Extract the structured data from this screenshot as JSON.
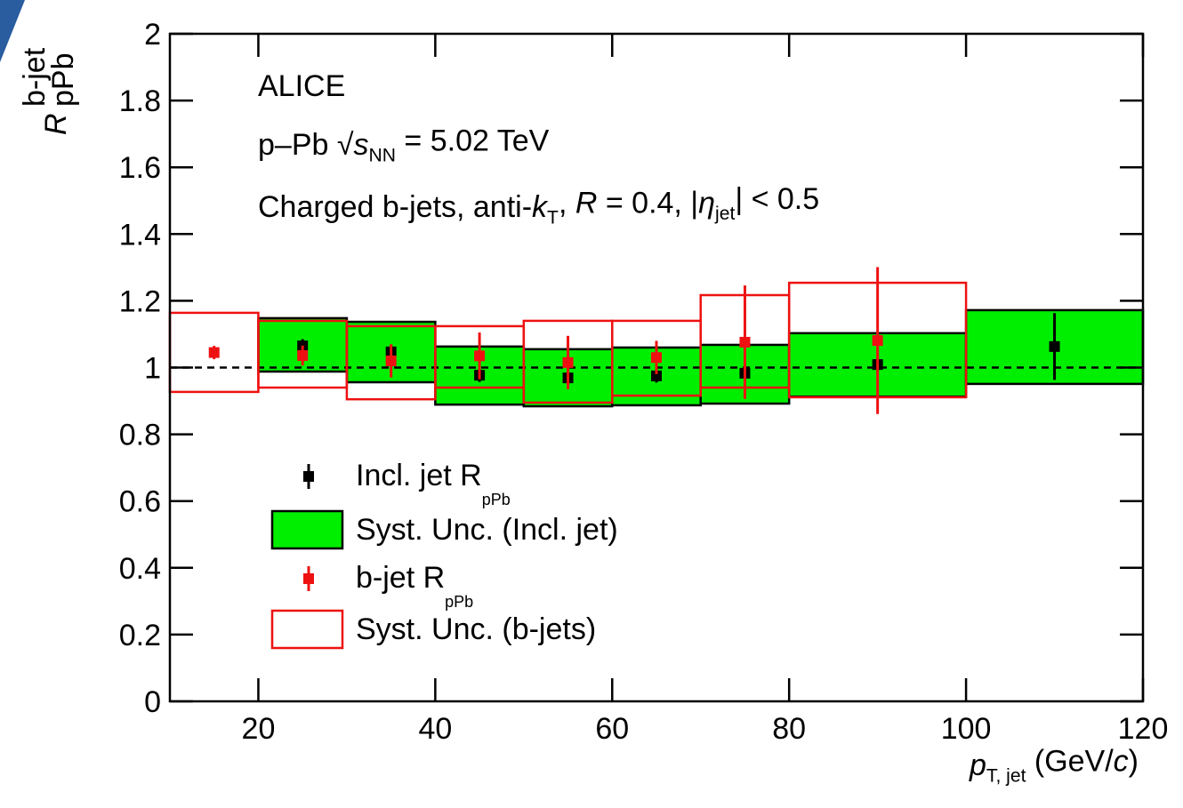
{
  "chart_data": {
    "type": "errorbar",
    "annotations": [
      [
        {
          "text": "ALICE"
        }
      ],
      [
        {
          "text": "p–Pb "
        },
        {
          "text": "√"
        },
        {
          "text": "s",
          "italic": true
        },
        {
          "text": "NN",
          "shift": "sub"
        },
        {
          "text": " = 5.02 TeV"
        }
      ],
      [
        {
          "text": "Charged b-jets, anti-"
        },
        {
          "text": "k",
          "italic": true
        },
        {
          "text": "T",
          "shift": "sub"
        },
        {
          "text": ", "
        },
        {
          "text": "R",
          "italic": true
        },
        {
          "text": " = 0.4, |"
        },
        {
          "text": "η",
          "italic": true
        },
        {
          "text": "jet",
          "shift": "sub"
        },
        {
          "text": "| < 0.5"
        }
      ]
    ],
    "y_label": {
      "main": "R",
      "sup": "b-jet",
      "sub": "pPb"
    },
    "x_label": [
      {
        "text": "p",
        "italic": true
      },
      {
        "text": "T, jet",
        "shift": "sub"
      },
      {
        "text": " (GeV/"
      },
      {
        "text": "c",
        "italic": true
      },
      {
        "text": ")"
      }
    ],
    "xlim": [
      10,
      120
    ],
    "xticks": [
      20,
      40,
      60,
      80,
      100,
      120
    ],
    "ylim": [
      0,
      2
    ],
    "yticks": [
      0,
      0.2,
      0.4,
      0.6,
      0.8,
      1,
      1.2,
      1.4,
      1.6,
      1.8,
      2
    ],
    "reference_line": 1,
    "series": [
      {
        "kind": "points",
        "name": "Incl. jet R",
        "name_sub": "pPb",
        "color": "#000000",
        "x": [
          25,
          35,
          45,
          55,
          65,
          75,
          90,
          110
        ],
        "values": [
          1.065,
          1.047,
          0.977,
          0.969,
          0.975,
          0.983,
          1.009,
          1.063
        ],
        "errors": [
          0.02,
          0.02,
          0.02,
          0.02,
          0.02,
          0.02,
          0.02,
          0.1
        ]
      },
      {
        "kind": "syst",
        "name": "Syst. Unc. (Incl. jet)",
        "color": "#000000",
        "fill": "#00ee00",
        "bins": [
          20,
          30,
          40,
          50,
          60,
          70,
          80,
          100,
          120
        ],
        "hi": [
          1.148,
          1.137,
          1.063,
          1.055,
          1.06,
          1.068,
          1.103,
          1.172
        ],
        "lo": [
          0.988,
          0.956,
          0.889,
          0.884,
          0.887,
          0.892,
          0.913,
          0.951
        ]
      },
      {
        "kind": "points",
        "name": "b-jet R",
        "name_sub": "pPb",
        "color": "#ee1111",
        "x": [
          15,
          25,
          35,
          45,
          55,
          65,
          75,
          90
        ],
        "values": [
          1.045,
          1.036,
          1.02,
          1.035,
          1.015,
          1.03,
          1.076,
          1.081
        ],
        "errors": [
          0.02,
          0.03,
          0.05,
          0.07,
          0.08,
          0.05,
          0.17,
          0.22
        ]
      },
      {
        "kind": "syst",
        "name": "Syst. Unc. (b-jets)",
        "color": "#ee1111",
        "fill": "none",
        "bins": [
          10,
          20,
          30,
          40,
          50,
          60,
          70,
          80,
          100
        ],
        "hi": [
          1.164,
          1.14,
          1.124,
          1.124,
          1.14,
          1.14,
          1.217,
          1.254
        ],
        "lo": [
          0.927,
          0.94,
          0.905,
          0.94,
          0.895,
          0.916,
          0.94,
          0.911
        ]
      }
    ]
  }
}
